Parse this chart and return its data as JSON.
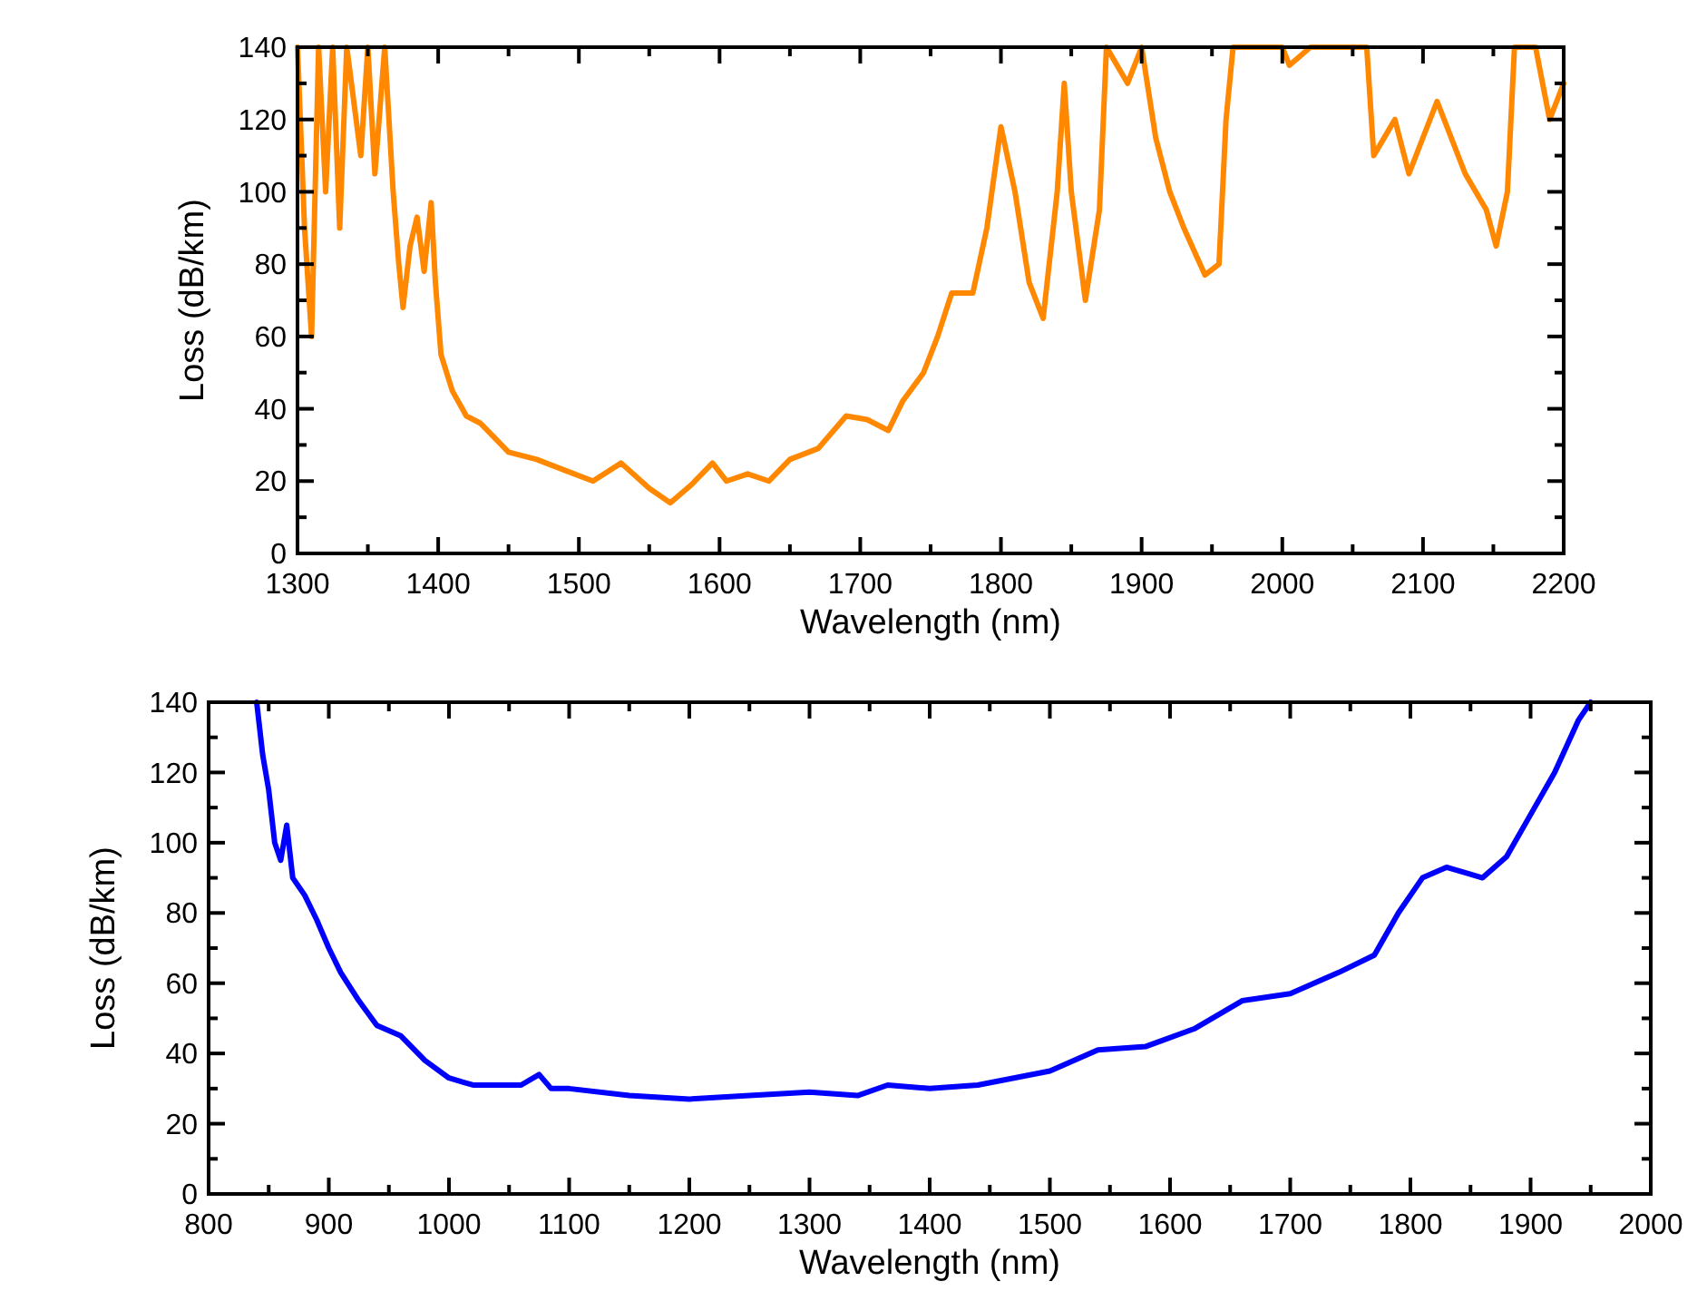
{
  "chart_data": [
    {
      "type": "line",
      "xlabel": "Wavelength (nm)",
      "ylabel": "Loss (dB/km)",
      "xlim": [
        1300,
        2200
      ],
      "ylim": [
        0,
        140
      ],
      "xticks": [
        1300,
        {
          "value": 1350,
          "label": null
        },
        1400,
        {
          "value": 1450,
          "label": null
        },
        1500,
        {
          "value": 1550,
          "label": null
        },
        1600,
        {
          "value": 1650,
          "label": null
        },
        1700,
        {
          "value": 1750,
          "label": null
        },
        1800,
        {
          "value": 1850,
          "label": null
        },
        1900,
        {
          "value": 1950,
          "label": null
        },
        2000,
        {
          "value": 2050,
          "label": null
        },
        2100,
        {
          "value": 2150,
          "label": null
        },
        2200
      ],
      "yticks": [
        0,
        {
          "value": 10,
          "label": null
        },
        20,
        {
          "value": 30,
          "label": null
        },
        40,
        {
          "value": 50,
          "label": null
        },
        60,
        {
          "value": 70,
          "label": null
        },
        80,
        {
          "value": 90,
          "label": null
        },
        100,
        {
          "value": 110,
          "label": null
        },
        120,
        {
          "value": 130,
          "label": null
        },
        140
      ],
      "marker": "none",
      "line_style": "solid",
      "series": [
        {
          "color": "#ff8800",
          "x": [
            1300,
            1305,
            1310,
            1315,
            1320,
            1325,
            1330,
            1335,
            1345,
            1350,
            1355,
            1362,
            1368,
            1372,
            1375,
            1380,
            1385,
            1390,
            1395,
            1398,
            1402,
            1410,
            1420,
            1430,
            1440,
            1450,
            1470,
            1490,
            1510,
            1530,
            1550,
            1565,
            1580,
            1595,
            1605,
            1620,
            1635,
            1650,
            1670,
            1690,
            1705,
            1720,
            1730,
            1745,
            1755,
            1765,
            1780,
            1790,
            1800,
            1810,
            1820,
            1830,
            1840,
            1845,
            1850,
            1860,
            1870,
            1875,
            1890,
            1900,
            1910,
            1920,
            1930,
            1945,
            1955,
            1960,
            1965,
            2000,
            2005,
            2020,
            2060,
            2065,
            2080,
            2090,
            2110,
            2130,
            2145,
            2152,
            2160,
            2165,
            2180,
            2190,
            2200
          ],
          "values": [
            140,
            90,
            60,
            140,
            100,
            140,
            90,
            140,
            110,
            140,
            105,
            140,
            100,
            80,
            68,
            85,
            93,
            78,
            97,
            75,
            55,
            45,
            38,
            36,
            32,
            28,
            26,
            23,
            20,
            25,
            18,
            14,
            19,
            25,
            20,
            22,
            20,
            26,
            29,
            38,
            37,
            34,
            42,
            50,
            60,
            72,
            72,
            90,
            118,
            100,
            75,
            65,
            100,
            130,
            100,
            70,
            95,
            140,
            130,
            140,
            115,
            100,
            90,
            77,
            80,
            120,
            140,
            140,
            135,
            140,
            140,
            110,
            120,
            105,
            125,
            105,
            95,
            85,
            100,
            140,
            140,
            120,
            130
          ]
        }
      ]
    },
    {
      "type": "line",
      "xlabel": "Wavelength (nm)",
      "ylabel": "Loss (dB/km)",
      "xlim": [
        800,
        2000
      ],
      "ylim": [
        0,
        140
      ],
      "xticks": [
        800,
        {
          "value": 850,
          "label": null
        },
        900,
        {
          "value": 950,
          "label": null
        },
        1000,
        {
          "value": 1050,
          "label": null
        },
        1100,
        {
          "value": 1150,
          "label": null
        },
        1200,
        {
          "value": 1250,
          "label": null
        },
        1300,
        {
          "value": 1350,
          "label": null
        },
        1400,
        {
          "value": 1450,
          "label": null
        },
        1500,
        {
          "value": 1550,
          "label": null
        },
        1600,
        {
          "value": 1650,
          "label": null
        },
        1700,
        {
          "value": 1750,
          "label": null
        },
        1800,
        {
          "value": 1850,
          "label": null
        },
        1900,
        {
          "value": 1950,
          "label": null
        },
        2000
      ],
      "yticks": [
        0,
        {
          "value": 10,
          "label": null
        },
        20,
        {
          "value": 30,
          "label": null
        },
        40,
        {
          "value": 50,
          "label": null
        },
        60,
        {
          "value": 70,
          "label": null
        },
        80,
        {
          "value": 90,
          "label": null
        },
        100,
        {
          "value": 110,
          "label": null
        },
        120,
        {
          "value": 130,
          "label": null
        },
        140
      ],
      "marker": "none",
      "line_style": "solid",
      "series": [
        {
          "color": "#0000ff",
          "x": [
            840,
            845,
            850,
            855,
            860,
            865,
            870,
            880,
            890,
            900,
            910,
            925,
            940,
            960,
            980,
            1000,
            1020,
            1040,
            1060,
            1075,
            1085,
            1100,
            1150,
            1200,
            1250,
            1300,
            1340,
            1365,
            1400,
            1440,
            1500,
            1540,
            1580,
            1620,
            1660,
            1700,
            1740,
            1770,
            1790,
            1810,
            1830,
            1850,
            1860,
            1880,
            1900,
            1920,
            1940,
            1950
          ],
          "values": [
            140,
            125,
            115,
            100,
            95,
            105,
            90,
            85,
            78,
            70,
            63,
            55,
            48,
            45,
            38,
            33,
            31,
            31,
            31,
            34,
            30,
            30,
            28,
            27,
            28,
            29,
            28,
            31,
            30,
            31,
            35,
            41,
            42,
            47,
            55,
            57,
            63,
            68,
            80,
            90,
            93,
            91,
            90,
            96,
            108,
            120,
            135,
            140
          ]
        }
      ]
    }
  ]
}
